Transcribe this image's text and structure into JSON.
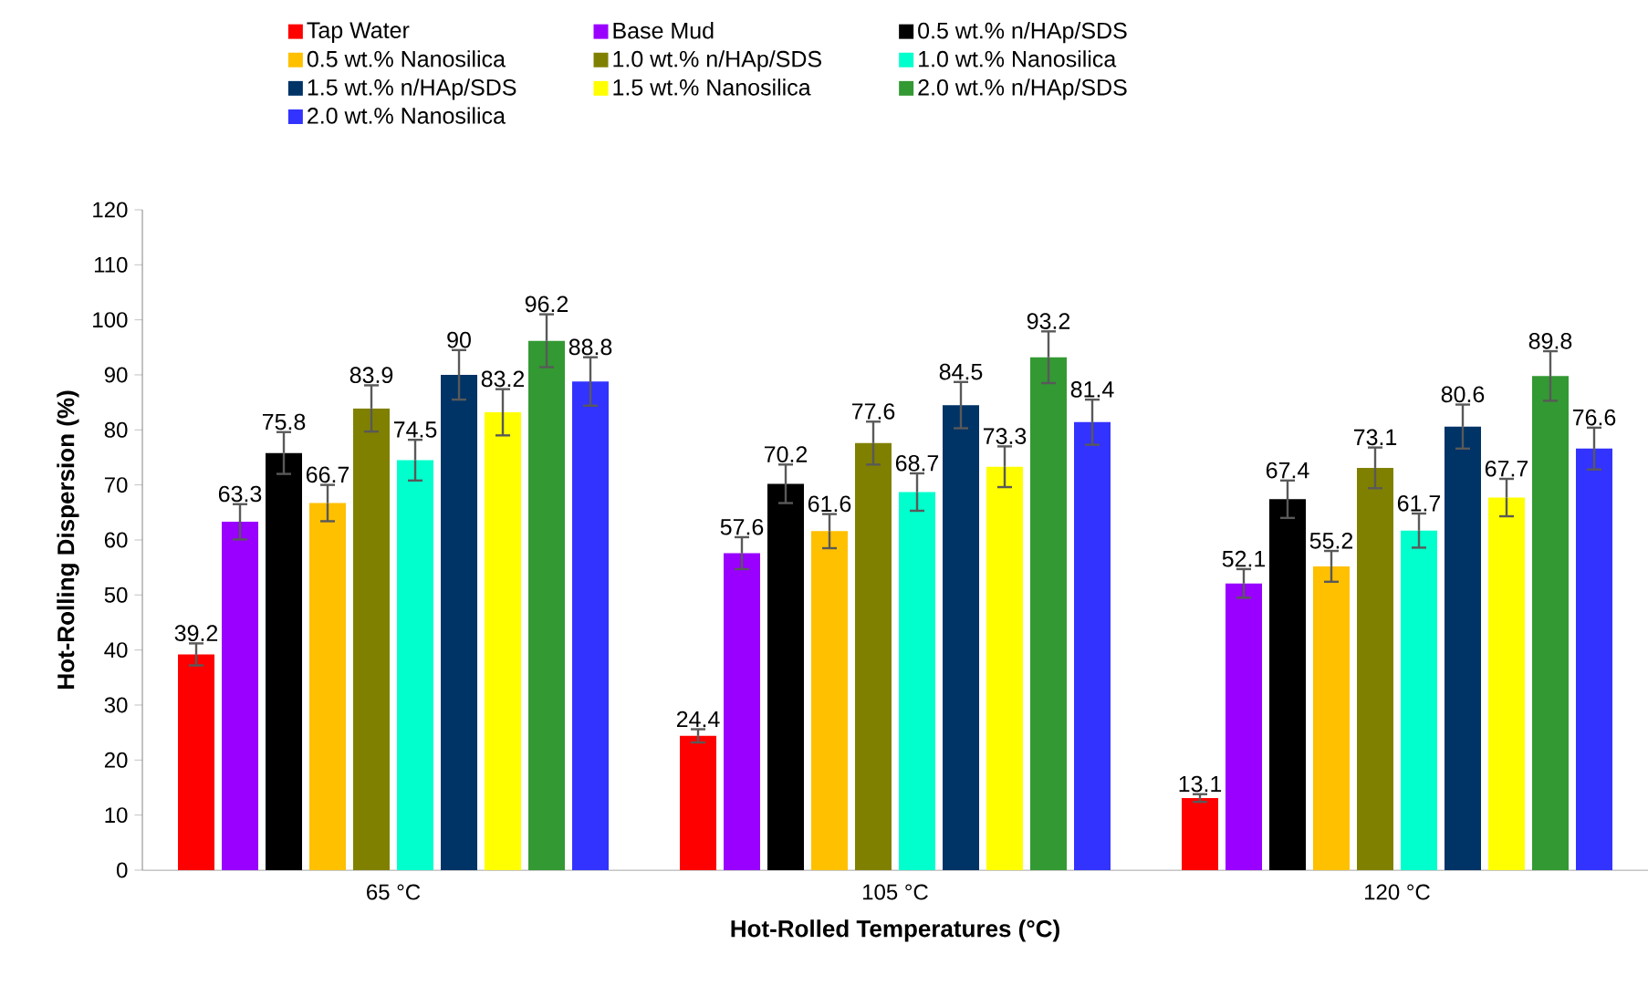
{
  "chart_data": {
    "type": "bar",
    "xlabel": "Hot-Rolled Temperatures (°C)",
    "ylabel": "Hot-Rolling Dispersion (%)",
    "categories": [
      "65 °C",
      "105  °C",
      "120  °C"
    ],
    "series": [
      {
        "name": "Tap Water",
        "color": "#ff0000",
        "values": [
          39.2,
          24.4,
          13.1
        ],
        "errors": [
          2.0,
          1.2,
          0.7
        ]
      },
      {
        "name": "Base Mud",
        "color": "#9900ff",
        "values": [
          63.3,
          57.6,
          52.1
        ],
        "errors": [
          3.2,
          2.9,
          2.6
        ]
      },
      {
        "name": "0.5 wt.% n/HAp/SDS",
        "color": "#000000",
        "values": [
          75.8,
          70.2,
          67.4
        ],
        "errors": [
          3.8,
          3.5,
          3.4
        ]
      },
      {
        "name": "0.5 wt.% Nanosilica",
        "color": "#ffc000",
        "values": [
          66.7,
          61.6,
          55.2
        ],
        "errors": [
          3.3,
          3.1,
          2.8
        ]
      },
      {
        "name": "1.0 wt.% n/HAp/SDS",
        "color": "#808000",
        "values": [
          83.9,
          77.6,
          73.1
        ],
        "errors": [
          4.2,
          3.9,
          3.7
        ]
      },
      {
        "name": "1.0 wt.% Nanosilica",
        "color": "#00ffcc",
        "values": [
          74.5,
          68.7,
          61.7
        ],
        "errors": [
          3.7,
          3.4,
          3.1
        ]
      },
      {
        "name": "1.5 wt.% n/HAp/SDS",
        "color": "#003366",
        "values": [
          90,
          84.5,
          80.6
        ],
        "errors": [
          4.5,
          4.2,
          4.0
        ]
      },
      {
        "name": "1.5 wt.% Nanosilica",
        "color": "#ffff00",
        "values": [
          83.2,
          73.3,
          67.7
        ],
        "errors": [
          4.2,
          3.7,
          3.4
        ]
      },
      {
        "name": "2.0 wt.% n/HAp/SDS",
        "color": "#339933",
        "values": [
          96.2,
          93.2,
          89.8
        ],
        "errors": [
          4.8,
          4.7,
          4.5
        ]
      },
      {
        "name": "2.0 wt.% Nanosilica",
        "color": "#3333ff",
        "values": [
          88.8,
          81.4,
          76.6
        ],
        "errors": [
          4.4,
          4.1,
          3.8
        ]
      }
    ],
    "ylim": [
      0,
      120
    ],
    "yticks": [
      0,
      10,
      20,
      30,
      40,
      50,
      60,
      70,
      80,
      90,
      100,
      110,
      120
    ],
    "data_labels": true,
    "legend": "top"
  }
}
